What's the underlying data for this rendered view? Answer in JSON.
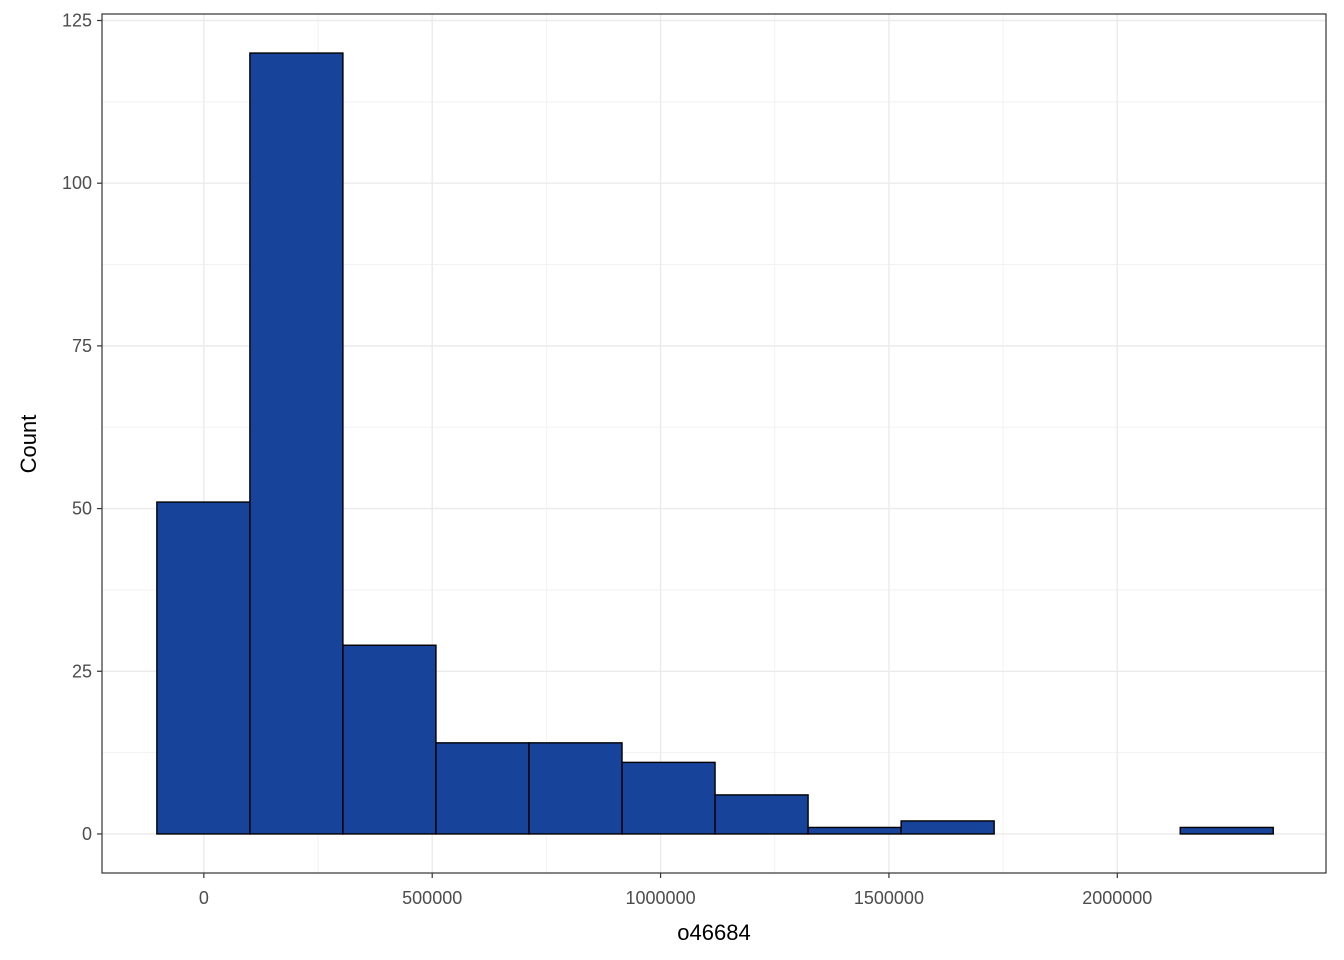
{
  "chart_data": {
    "type": "histogram",
    "x_label": "o46684",
    "y_label": "Count",
    "bins": [
      -102900,
      100800,
      304500,
      508200,
      711900,
      915600,
      1119300,
      1323000,
      1526700,
      1730400,
      1934100,
      2137800,
      2341500
    ],
    "values": [
      51,
      120,
      29,
      14,
      14,
      11,
      6,
      1,
      2,
      0,
      0,
      1
    ],
    "color": "#18439a",
    "edge_color": "#000000",
    "xlim": [
      -223000,
      2457000
    ],
    "ylim": [
      -6,
      126
    ],
    "xticks": [
      0,
      500000,
      1000000,
      1500000,
      2000000
    ],
    "yticks": [
      0,
      25,
      50,
      75,
      100,
      125
    ],
    "grid": true
  }
}
